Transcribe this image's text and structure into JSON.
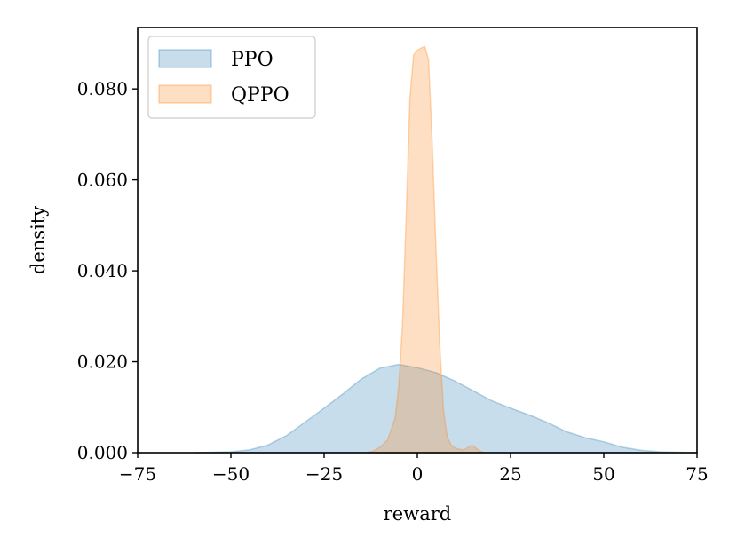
{
  "chart_data": {
    "type": "area",
    "xlabel": "reward",
    "ylabel": "density",
    "xlim": [
      -75,
      75
    ],
    "ylim": [
      0,
      0.0935
    ],
    "xticks": [
      -75,
      -50,
      -25,
      0,
      25,
      50,
      75
    ],
    "xtick_labels": [
      "−75",
      "−50",
      "−25",
      "0",
      "25",
      "50",
      "75"
    ],
    "yticks": [
      0,
      0.02,
      0.04,
      0.06,
      0.08
    ],
    "ytick_labels": [
      "0.000",
      "0.020",
      "0.040",
      "0.060",
      "0.080"
    ],
    "grid": false,
    "legend_position": "top-left",
    "series": [
      {
        "name": "PPO",
        "color": "#1f77b4",
        "x": [
          -60,
          -50,
          -45,
          -40,
          -35,
          -30,
          -25,
          -20,
          -15,
          -10,
          -5,
          0,
          5,
          10,
          15,
          20,
          25,
          30,
          35,
          40,
          45,
          50,
          55,
          60,
          65,
          70,
          75
        ],
        "y": [
          0,
          0.0002,
          0.0006,
          0.0017,
          0.0038,
          0.0068,
          0.0098,
          0.0129,
          0.0162,
          0.0186,
          0.0194,
          0.0187,
          0.0176,
          0.0158,
          0.0136,
          0.0114,
          0.0098,
          0.0083,
          0.0066,
          0.0046,
          0.0033,
          0.0024,
          0.0012,
          0.0005,
          0.0002,
          0.0001,
          0
        ]
      },
      {
        "name": "QPPO",
        "color": "#ff7f0e",
        "x": [
          -14,
          -12,
          -10,
          -8,
          -6,
          -5,
          -4,
          -3,
          -2,
          -1,
          0,
          1,
          2,
          3,
          4,
          5,
          6,
          7,
          8,
          9,
          10,
          11,
          12,
          13,
          14,
          15,
          16,
          17,
          18
        ],
        "y": [
          0,
          0.0003,
          0.0012,
          0.0028,
          0.0075,
          0.0145,
          0.028,
          0.052,
          0.078,
          0.0875,
          0.0885,
          0.089,
          0.0893,
          0.0865,
          0.068,
          0.045,
          0.024,
          0.0095,
          0.0035,
          0.0018,
          0.0011,
          0.0008,
          0.0006,
          0.0008,
          0.0015,
          0.0015,
          0.0008,
          0.0003,
          0
        ]
      }
    ]
  }
}
